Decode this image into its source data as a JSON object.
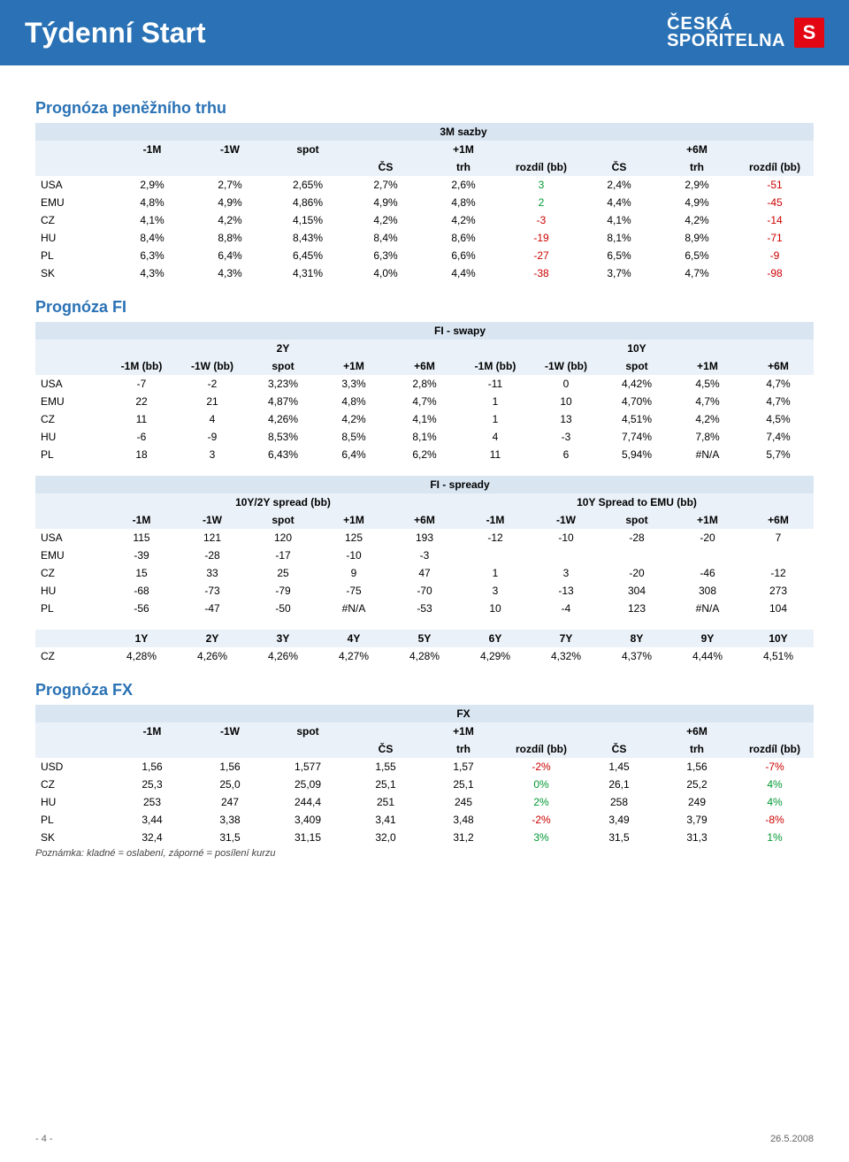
{
  "header": {
    "title": "Týdenní Start",
    "logo_top": "ČESKÁ",
    "logo_bottom": "SPOŘITELNA"
  },
  "colors": {
    "header_bg": "#2a72b5",
    "accent": "#e30613",
    "th_bg": "#d9e6f2",
    "th_bg2": "#eaf1f8",
    "pos": "#009933",
    "neg": "#cc0000"
  },
  "section1": {
    "title": "Prognóza peněžního trhu",
    "super": "3M sazby",
    "cols1": [
      "-1M",
      "-1W",
      "spot"
    ],
    "plus1m": "+1M",
    "plus6m": "+6M",
    "subcols": [
      "ČS",
      "trh",
      "rozdíl (bb)"
    ],
    "rows": [
      {
        "k": "USA",
        "v": [
          "2,9%",
          "2,7%",
          "2,65%",
          "2,7%",
          "2,6%",
          "3",
          "2,4%",
          "2,9%",
          "-51"
        ],
        "c": [
          null,
          null,
          null,
          null,
          null,
          "green",
          null,
          null,
          "red"
        ]
      },
      {
        "k": "EMU",
        "v": [
          "4,8%",
          "4,9%",
          "4,86%",
          "4,9%",
          "4,8%",
          "2",
          "4,4%",
          "4,9%",
          "-45"
        ],
        "c": [
          null,
          null,
          null,
          null,
          null,
          "green",
          null,
          null,
          "red"
        ]
      },
      {
        "k": "CZ",
        "v": [
          "4,1%",
          "4,2%",
          "4,15%",
          "4,2%",
          "4,2%",
          "-3",
          "4,1%",
          "4,2%",
          "-14"
        ],
        "c": [
          null,
          null,
          null,
          null,
          null,
          "red",
          null,
          null,
          "red"
        ]
      },
      {
        "k": "HU",
        "v": [
          "8,4%",
          "8,8%",
          "8,43%",
          "8,4%",
          "8,6%",
          "-19",
          "8,1%",
          "8,9%",
          "-71"
        ],
        "c": [
          null,
          null,
          null,
          null,
          null,
          "red",
          null,
          null,
          "red"
        ]
      },
      {
        "k": "PL",
        "v": [
          "6,3%",
          "6,4%",
          "6,45%",
          "6,3%",
          "6,6%",
          "-27",
          "6,5%",
          "6,5%",
          "-9"
        ],
        "c": [
          null,
          null,
          null,
          null,
          null,
          "red",
          null,
          null,
          "red"
        ]
      },
      {
        "k": "SK",
        "v": [
          "4,3%",
          "4,3%",
          "4,31%",
          "4,0%",
          "4,4%",
          "-38",
          "3,7%",
          "4,7%",
          "-98"
        ],
        "c": [
          null,
          null,
          null,
          null,
          null,
          "red",
          null,
          null,
          "red"
        ]
      }
    ]
  },
  "section2": {
    "title": "Prognóza FI",
    "super": "FI - swapy",
    "h2y": "2Y",
    "h10y": "10Y",
    "cols": [
      "-1M (bb)",
      "-1W (bb)",
      "spot",
      "+1M",
      "+6M",
      "-1M (bb)",
      "-1W (bb)",
      "spot",
      "+1M",
      "+6M"
    ],
    "rows": [
      {
        "k": "USA",
        "v": [
          "-7",
          "-2",
          "3,23%",
          "3,3%",
          "2,8%",
          "-11",
          "0",
          "4,42%",
          "4,5%",
          "4,7%"
        ]
      },
      {
        "k": "EMU",
        "v": [
          "22",
          "21",
          "4,87%",
          "4,8%",
          "4,7%",
          "1",
          "10",
          "4,70%",
          "4,7%",
          "4,7%"
        ]
      },
      {
        "k": "CZ",
        "v": [
          "11",
          "4",
          "4,26%",
          "4,2%",
          "4,1%",
          "1",
          "13",
          "4,51%",
          "4,2%",
          "4,5%"
        ]
      },
      {
        "k": "HU",
        "v": [
          "-6",
          "-9",
          "8,53%",
          "8,5%",
          "8,1%",
          "4",
          "-3",
          "7,74%",
          "7,8%",
          "7,4%"
        ]
      },
      {
        "k": "PL",
        "v": [
          "18",
          "3",
          "6,43%",
          "6,4%",
          "6,2%",
          "11",
          "6",
          "5,94%",
          "#N/A",
          "5,7%"
        ]
      }
    ]
  },
  "section3": {
    "super": "FI - spready",
    "h1": "10Y/2Y spread (bb)",
    "h2": "10Y Spread to EMU (bb)",
    "cols": [
      "-1M",
      "-1W",
      "spot",
      "+1M",
      "+6M",
      "-1M",
      "-1W",
      "spot",
      "+1M",
      "+6M"
    ],
    "rows": [
      {
        "k": "USA",
        "v": [
          "115",
          "121",
          "120",
          "125",
          "193",
          "-12",
          "-10",
          "-28",
          "-20",
          "7"
        ]
      },
      {
        "k": "EMU",
        "v": [
          "-39",
          "-28",
          "-17",
          "-10",
          "-3",
          "",
          "",
          "",
          "",
          ""
        ]
      },
      {
        "k": "CZ",
        "v": [
          "15",
          "33",
          "25",
          "9",
          "47",
          "1",
          "3",
          "-20",
          "-46",
          "-12"
        ]
      },
      {
        "k": "HU",
        "v": [
          "-68",
          "-73",
          "-79",
          "-75",
          "-70",
          "3",
          "-13",
          "304",
          "308",
          "273"
        ]
      },
      {
        "k": "PL",
        "v": [
          "-56",
          "-47",
          "-50",
          "#N/A",
          "-53",
          "10",
          "-4",
          "123",
          "#N/A",
          "104"
        ]
      }
    ]
  },
  "section4": {
    "cols": [
      "1Y",
      "2Y",
      "3Y",
      "4Y",
      "5Y",
      "6Y",
      "7Y",
      "8Y",
      "9Y",
      "10Y"
    ],
    "row": {
      "k": "CZ",
      "v": [
        "4,28%",
        "4,26%",
        "4,26%",
        "4,27%",
        "4,28%",
        "4,29%",
        "4,32%",
        "4,37%",
        "4,44%",
        "4,51%"
      ]
    }
  },
  "section5": {
    "title": "Prognóza FX",
    "super": "FX",
    "cols1": [
      "-1M",
      "-1W",
      "spot"
    ],
    "plus1m": "+1M",
    "plus6m": "+6M",
    "subcols": [
      "ČS",
      "trh",
      "rozdíl (bb)"
    ],
    "rows": [
      {
        "k": "USD",
        "v": [
          "1,56",
          "1,56",
          "1,577",
          "1,55",
          "1,57",
          "-2%",
          "1,45",
          "1,56",
          "-7%"
        ],
        "c": [
          null,
          null,
          null,
          null,
          null,
          "red",
          null,
          null,
          "red"
        ]
      },
      {
        "k": "CZ",
        "v": [
          "25,3",
          "25,0",
          "25,09",
          "25,1",
          "25,1",
          "0%",
          "26,1",
          "25,2",
          "4%"
        ],
        "c": [
          null,
          null,
          null,
          null,
          null,
          "green",
          null,
          null,
          "green"
        ]
      },
      {
        "k": "HU",
        "v": [
          "253",
          "247",
          "244,4",
          "251",
          "245",
          "2%",
          "258",
          "249",
          "4%"
        ],
        "c": [
          null,
          null,
          null,
          null,
          null,
          "green",
          null,
          null,
          "green"
        ]
      },
      {
        "k": "PL",
        "v": [
          "3,44",
          "3,38",
          "3,409",
          "3,41",
          "3,48",
          "-2%",
          "3,49",
          "3,79",
          "-8%"
        ],
        "c": [
          null,
          null,
          null,
          null,
          null,
          "red",
          null,
          null,
          "red"
        ]
      },
      {
        "k": "SK",
        "v": [
          "32,4",
          "31,5",
          "31,15",
          "32,0",
          "31,2",
          "3%",
          "31,5",
          "31,3",
          "1%"
        ],
        "c": [
          null,
          null,
          null,
          null,
          null,
          "green",
          null,
          null,
          "green"
        ]
      }
    ],
    "footnote": "Poznámka: kladné = oslabení, záporné = posílení kurzu"
  },
  "footer": {
    "left": "- 4 -",
    "right": "26.5.2008"
  }
}
